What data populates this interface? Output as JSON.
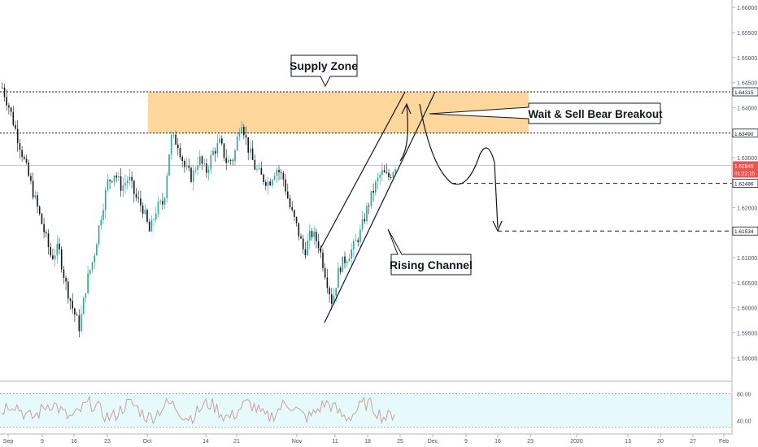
{
  "chart_data": {
    "type": "candlestick",
    "title": "",
    "xlabel": "",
    "ylabel": "",
    "ylim": [
      1.5855,
      1.6615
    ],
    "y_ticks": [
      "1.66000",
      "1.65500",
      "1.65000",
      "1.64500",
      "1.64000",
      "1.63500",
      "1.63000",
      "1.62500",
      "1.62000",
      "1.61500",
      "1.61000",
      "1.60500",
      "1.60000",
      "1.59500",
      "1.59000"
    ],
    "x_ticks": [
      "Sep",
      "9",
      "16",
      "23",
      "Oct",
      "14",
      "21",
      "Nov",
      "11",
      "18",
      "25",
      "Dec",
      "9",
      "16",
      "23",
      "2020",
      "13",
      "20",
      "27",
      "Feb"
    ],
    "price_levels": [
      {
        "label": "1.64315",
        "value": 1.64315,
        "style": "dotted",
        "color": "#131722"
      },
      {
        "label": "1.63490",
        "value": 1.6349,
        "style": "dotted",
        "color": "#131722"
      },
      {
        "label": "1.62486",
        "value": 1.62486,
        "style": "dashed",
        "color": "#131722"
      },
      {
        "label": "1.61534",
        "value": 1.61534,
        "style": "dashed",
        "color": "#131722"
      }
    ],
    "current_price": {
      "label": "1.62846",
      "value": 1.62846,
      "countdown": "01:22:15",
      "color": "#ef5350"
    },
    "zone": {
      "name": "Supply Zone",
      "top": 1.64315,
      "bottom": 1.6349,
      "color": "#ffb74d"
    },
    "annotations": [
      {
        "name": "supply-zone-callout",
        "text": "Supply Zone"
      },
      {
        "name": "breakout-callout",
        "text": "Wait & Sell Bear Breakout"
      },
      {
        "name": "channel-callout",
        "text": "Rising Channel"
      }
    ],
    "ohlc_anchor_closes": [
      1.644,
      1.64,
      1.635,
      1.63,
      1.625,
      1.62,
      1.615,
      1.61,
      1.612,
      1.605,
      1.6,
      1.596,
      1.605,
      1.61,
      1.618,
      1.625,
      1.627,
      1.624,
      1.626,
      1.622,
      1.62,
      1.615,
      1.62,
      1.621,
      1.634,
      1.633,
      1.628,
      1.626,
      1.63,
      1.627,
      1.631,
      1.633,
      1.629,
      1.63,
      1.638,
      1.632,
      1.628,
      1.626,
      1.625,
      1.628,
      1.626,
      1.62,
      1.616,
      1.611,
      1.615,
      1.613,
      1.607,
      1.601,
      1.608,
      1.61,
      1.612,
      1.615,
      1.62,
      1.624,
      1.627,
      1.626,
      1.6285
    ],
    "oscillator": {
      "ylim": [
        25,
        95
      ],
      "y_ticks": [
        "80.00",
        "40.00"
      ],
      "upper": 80,
      "lower": 30,
      "line_color": "#c9a0a0",
      "band_color": "#e0f7fa"
    }
  }
}
